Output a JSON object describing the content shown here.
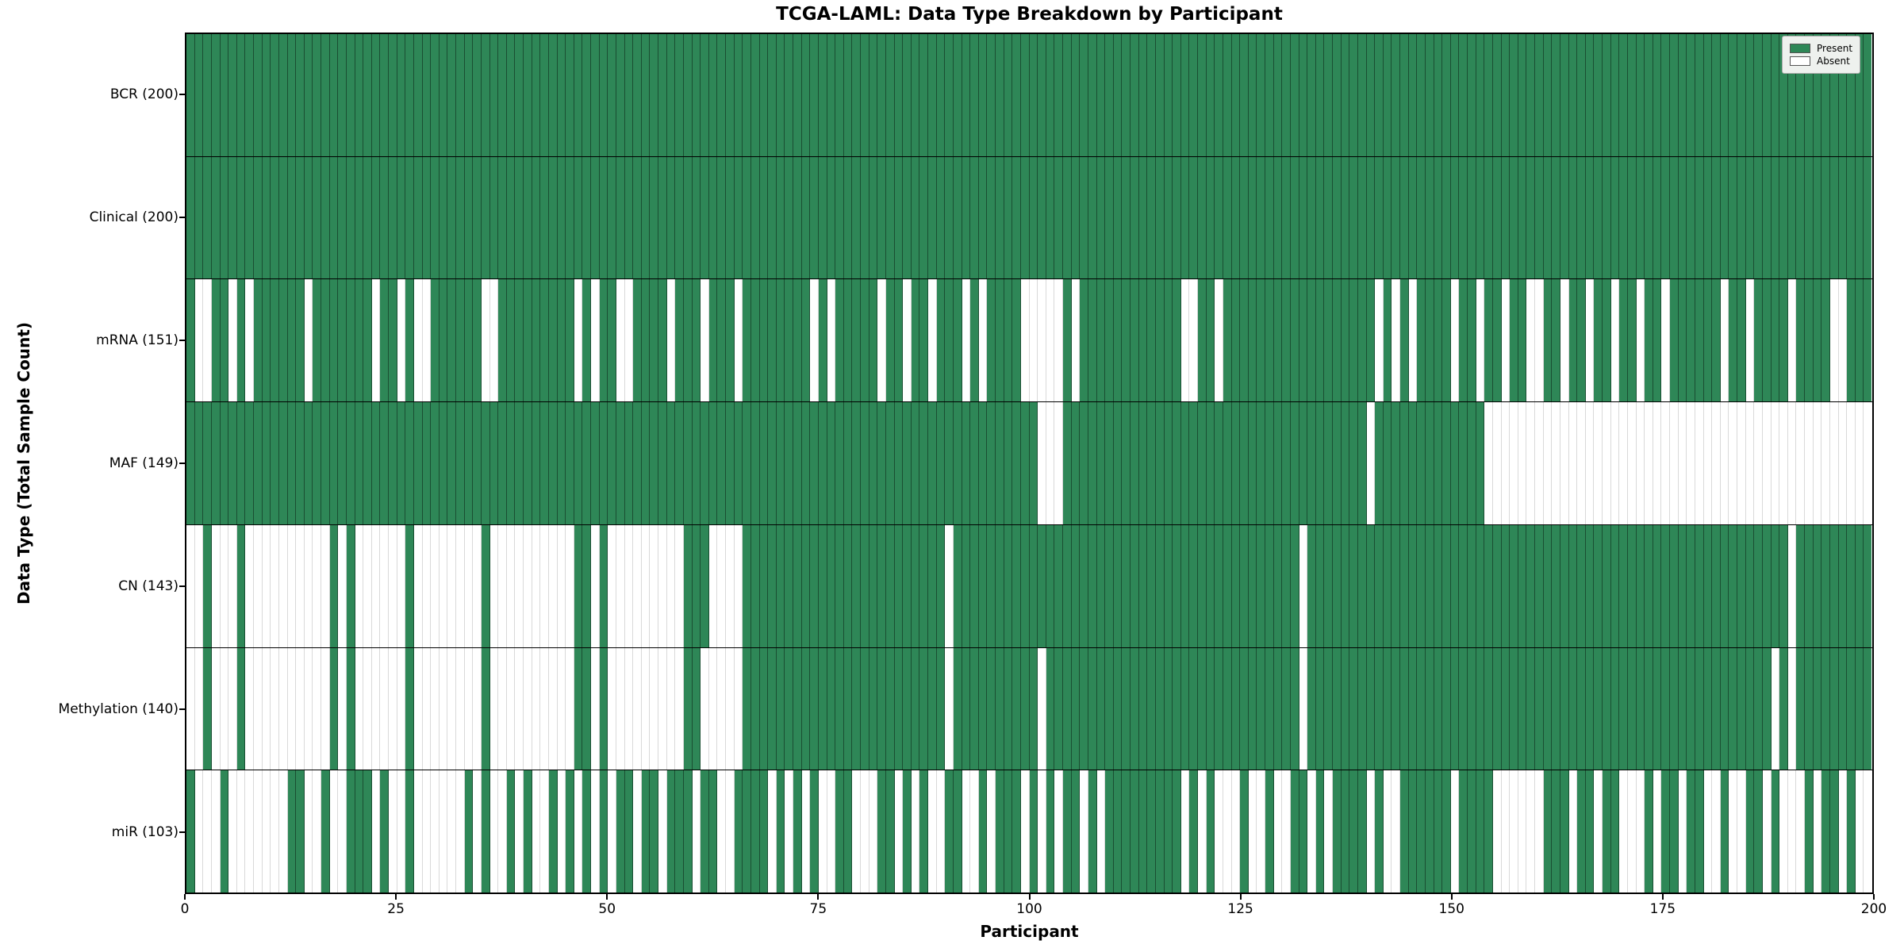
{
  "title": "TCGA-LAML: Data Type Breakdown by Participant",
  "xlabel": "Participant",
  "ylabel": "Data Type (Total Sample Count)",
  "legend": {
    "present_label": "Present",
    "absent_label": "Absent"
  },
  "colors": {
    "present": "#2e8757",
    "absent": "#ffffff"
  },
  "chart_data": {
    "type": "heatmap",
    "title": "TCGA-LAML: Data Type Breakdown by Participant",
    "xlabel": "Participant",
    "ylabel": "Data Type (Total Sample Count)",
    "x_range": [
      0,
      200
    ],
    "n_participants": 200,
    "x_ticks": [
      0,
      25,
      50,
      75,
      100,
      125,
      150,
      175,
      200
    ],
    "legend_position": "upper right",
    "cell_values": {
      "present": 1,
      "absent": 0
    },
    "rows": [
      {
        "label": "BCR (200)",
        "name": "BCR",
        "total": 200,
        "present": "11111111111111111111111111111111111111111111111111111111111111111111111111111111111111111111111111111111111111111111111111111111111111111111111111111111111111111111111111111111111111111111111111111111"
      },
      {
        "label": "Clinical (200)",
        "name": "Clinical",
        "total": 200,
        "present": "11111111111111111111111111111111111111111111111111111111111111111111111111111111111111111111111111111111111111111111111111111111111111111111111111111111111111111111111111111111111111111111111111111111"
      },
      {
        "label": "mRNA (151)",
        "name": "mRNA",
        "total": 151,
        "present": "10011010111111011111110110100111111001111111110101100111101110111011111111010111110110110111010111100000101111111111110011011111111111111111101010111101101101100110110110110110111111011011110111100111"
      },
      {
        "label": "MAF (149)",
        "name": "MAF",
        "total": 149,
        "present": "11111111111111111111111111111111111111111111111111111111111111111111111111111111111111111111111111111000111111111111111111111111111111111111011111111111110000000000000000000000000000000000000000000000"
      },
      {
        "label": "CN (143)",
        "name": "CN",
        "total": 143,
        "present": "00100010000000000101000000100000000100000000001101000000000111000011111111111111111111111101111111111111111111111111111111111111111101111111111111111111111111111111111111111111111111111111110111111111"
      },
      {
        "label": "Methylation (140)",
        "name": "Methylation",
        "total": 140,
        "present": "00100010000000000101000000100000000100000000001101000000000110000011111111111111111111111101111111111011111111111111111111111111111101111111111111111111111111111111111111111111111111111111010111111111"
      },
      {
        "label": "miR (103)",
        "name": "miR",
        "total": 103,
        "present": "10001000000011001001110100100000010100101001010101011011011101100111101010100110001101010011001011101010110101111111110101000100100110101111010011111101111000000111011011000101101100100110100010110100"
      }
    ]
  }
}
